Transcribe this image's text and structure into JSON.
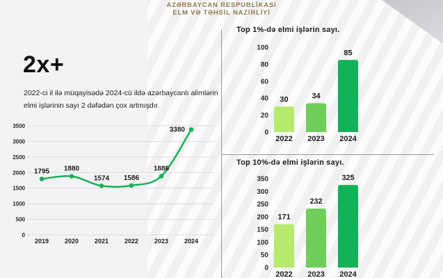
{
  "header": {
    "line1": "AZƏRBAYCAN RESPUBLİKASI",
    "line2": "ELM VƏ TƏHSİL NAZİRLİYİ"
  },
  "left_panel": {
    "headline": "2x+",
    "description": "2022-ci il ilə müqayisədə 2024-cü ildə azərbaycanlı alimlərin elmi işlərinin sayı 2 dəfədən çox artmışdır."
  },
  "colors": {
    "accent_green": "#17b157",
    "bar_2022": "#b5ea6c",
    "bar_2023": "#6fce58",
    "bar_2024": "#12b258",
    "grid": "#dcdcdc",
    "axis_text": "#2a2a2a",
    "label_text": "#1c1c1c",
    "header_gold": "#8e7c4b",
    "divider": "#97979b"
  },
  "chart_data": [
    {
      "type": "line",
      "name": "elmi-isler-illik-sayi",
      "title": "",
      "categories": [
        "2019",
        "2020",
        "2021",
        "2022",
        "2023",
        "2024"
      ],
      "values": [
        1795,
        1880,
        1574,
        1586,
        1886,
        3380
      ],
      "ylim": [
        0,
        3500
      ],
      "ytick_step": 500,
      "grid": true,
      "legend": "none",
      "line_color": "#17b157"
    },
    {
      "type": "bar",
      "name": "top-1-faiz",
      "title": "Top 1%-də elmi işlərin sayı.",
      "categories": [
        "2022",
        "2023",
        "2024"
      ],
      "values": [
        30,
        34,
        85
      ],
      "ylim": [
        0,
        100
      ],
      "ytick_step": 20,
      "grid": false,
      "legend": "none",
      "bar_colors": [
        "#b5ea6c",
        "#6fce58",
        "#12b258"
      ]
    },
    {
      "type": "bar",
      "name": "top-10-faiz",
      "title": "Top 10%-də elmi işlərin sayı.",
      "categories": [
        "2022",
        "2023",
        "2024"
      ],
      "values": [
        171,
        232,
        325
      ],
      "ylim": [
        0,
        350
      ],
      "ytick_step": 50,
      "grid": false,
      "legend": "none",
      "bar_colors": [
        "#b5ea6c",
        "#6fce58",
        "#12b258"
      ]
    }
  ]
}
